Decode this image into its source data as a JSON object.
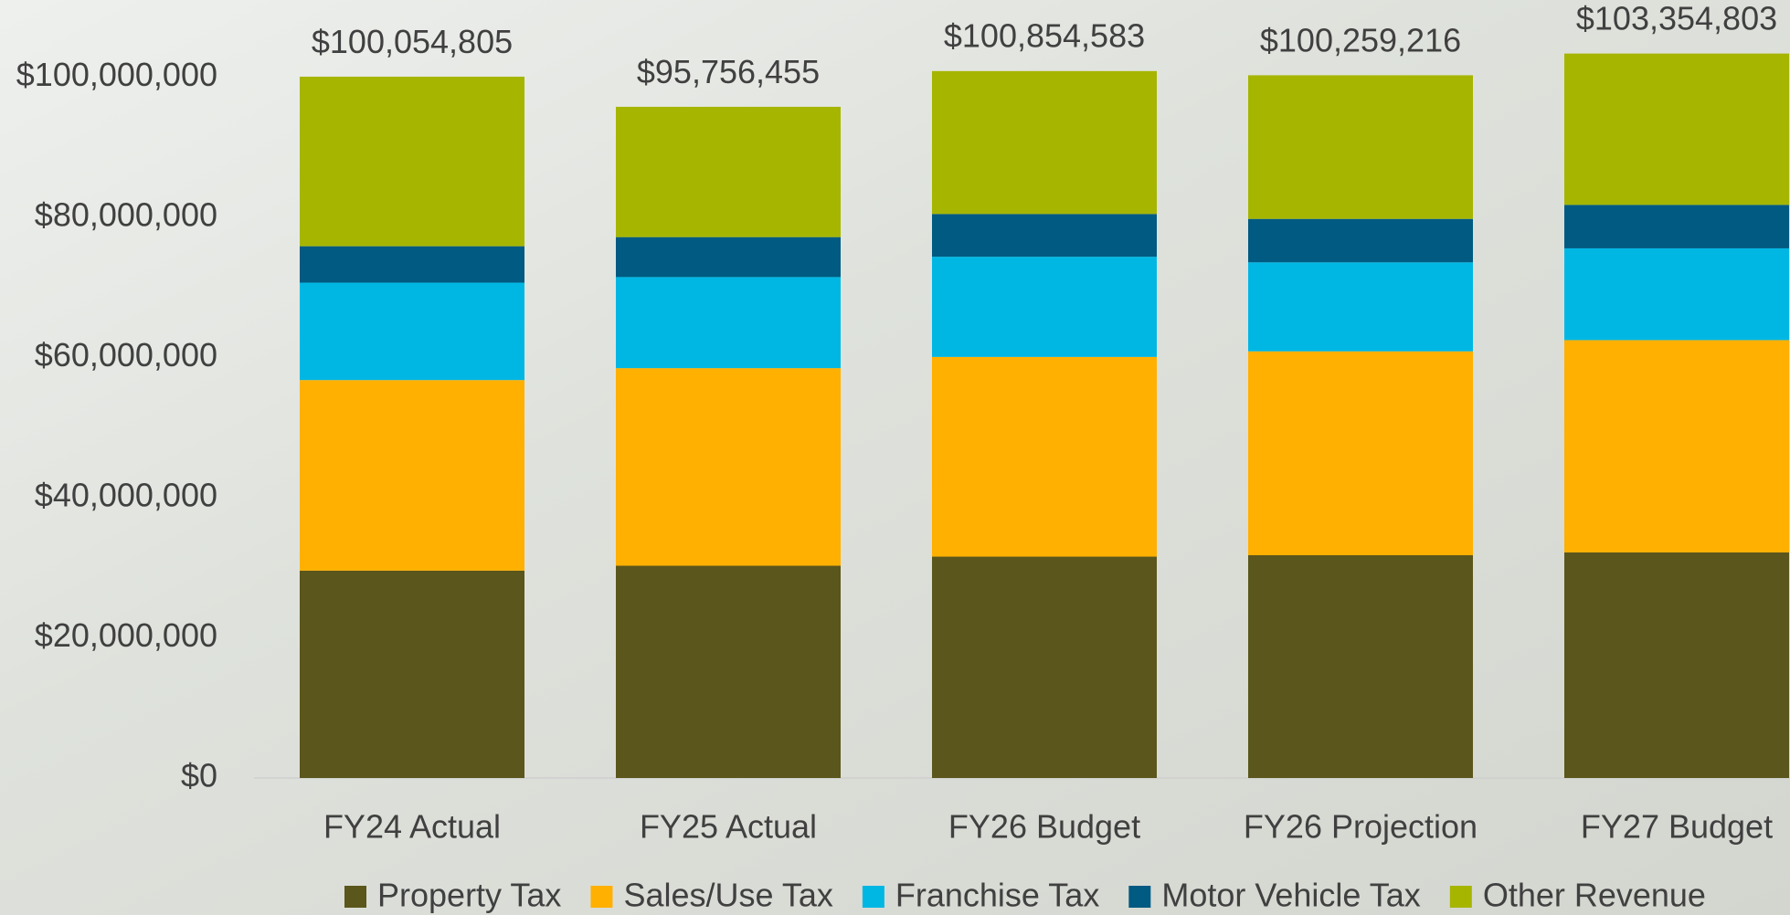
{
  "chart_data": {
    "type": "stacked-bar",
    "categories": [
      "FY24 Actual",
      "FY25 Actual",
      "FY26 Budget",
      "FY26 Projection",
      "FY27 Budget"
    ],
    "series": [
      {
        "name": "Property Tax",
        "color": "#5b561b",
        "values": [
          29600000,
          30300000,
          31600000,
          31800000,
          32200000
        ]
      },
      {
        "name": "Sales/Use Tax",
        "color": "#ffb000",
        "values": [
          27200000,
          28200000,
          28500000,
          29100000,
          30300000
        ]
      },
      {
        "name": "Franchise Tax",
        "color": "#00b7e4",
        "values": [
          13900000,
          13000000,
          14300000,
          12700000,
          13100000
        ]
      },
      {
        "name": "Motor Vehicle Tax",
        "color": "#005a82",
        "values": [
          5200000,
          5700000,
          6100000,
          6200000,
          6200000
        ]
      },
      {
        "name": "Other Revenue",
        "color": "#a6b500",
        "values": [
          24200000,
          18600000,
          20400000,
          20500000,
          21600000
        ]
      }
    ],
    "totals": [
      100054805,
      95756455,
      100854583,
      100259216,
      103354803
    ],
    "total_labels": [
      "$100,054,805",
      "$95,756,455",
      "$100,854,583",
      "$100,259,216",
      "$103,354,803"
    ],
    "ylim": [
      0,
      110000000
    ],
    "yticks": [
      {
        "value": 0,
        "label": "$0"
      },
      {
        "value": 20000000,
        "label": "$20,000,000"
      },
      {
        "value": 40000000,
        "label": "$40,000,000"
      },
      {
        "value": 60000000,
        "label": "$60,000,000"
      },
      {
        "value": 80000000,
        "label": "$80,000,000"
      },
      {
        "value": 100000000,
        "label": "$100,000,000"
      }
    ],
    "grid": false,
    "legend": "bottom"
  }
}
